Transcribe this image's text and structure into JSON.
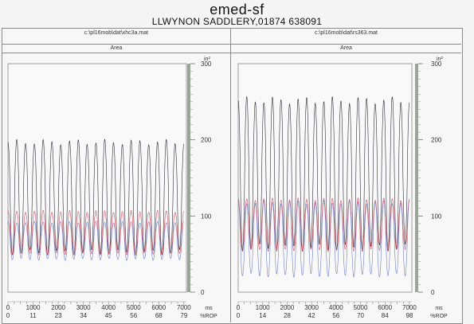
{
  "header": {
    "title": "emed-sf",
    "subtitle": "LLWYNON SADDLERY,01874 638091"
  },
  "panels": [
    {
      "file": "c:\\pl16mob\\dat\\xhc3a.mat",
      "metric": "Area"
    },
    {
      "file": "c:\\pl16mob\\dat\\rs363.mat",
      "metric": "Area"
    }
  ],
  "colors": {
    "dark": "#2b2b3a",
    "red": "#d84a5c",
    "blue": "#6f7fc4"
  },
  "chart_data": [
    {
      "type": "line",
      "x_unit": "ms",
      "y_unit": "in²",
      "ylim": [
        0,
        300
      ],
      "y_ticks": [
        0,
        100,
        200,
        300
      ],
      "xlim": [
        0,
        7100
      ],
      "x_ticks": [
        0,
        1000,
        2000,
        3000,
        4000,
        5000,
        6000,
        7000
      ],
      "x_ticks_labels": [
        "0",
        "1000",
        "2000",
        "3000",
        "4000",
        "5000",
        "6000",
        "7000"
      ],
      "x2_unit": "%ROP",
      "x2_ticks": [
        "0",
        "11",
        "23",
        "34",
        "45",
        "56",
        "68",
        "79"
      ],
      "cycles": 20,
      "series": [
        {
          "color": "dark",
          "peak": 197,
          "trough": 52
        },
        {
          "color": "red",
          "peak": 106,
          "trough": 50
        },
        {
          "color": "blue",
          "peak": 92,
          "trough": 43
        }
      ]
    },
    {
      "type": "line",
      "x_unit": "ms",
      "y_unit": "in²",
      "ylim": [
        0,
        300
      ],
      "y_ticks": [
        0,
        100,
        200,
        300
      ],
      "xlim": [
        0,
        7100
      ],
      "x_ticks": [
        0,
        1000,
        2000,
        3000,
        4000,
        5000,
        6000,
        7000
      ],
      "x_ticks_labels": [
        "0",
        "1000",
        "2000",
        "3000",
        "4000",
        "5000",
        "6000",
        "7000"
      ],
      "x2_unit": "%ROP",
      "x2_ticks": [
        "0",
        "14",
        "28",
        "42",
        "56",
        "70",
        "84",
        "98"
      ],
      "cycles": 20,
      "series": [
        {
          "color": "dark",
          "peak": 252,
          "trough": 58
        },
        {
          "color": "red",
          "peak": 122,
          "trough": 55
        },
        {
          "color": "blue",
          "peak": 118,
          "trough": 22
        }
      ]
    }
  ]
}
